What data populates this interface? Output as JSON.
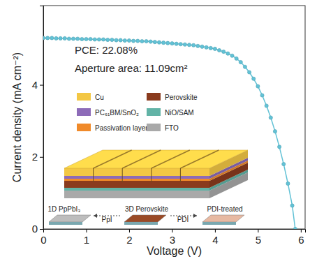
{
  "chart_data": {
    "type": "line",
    "x_label": "Voltage (V)",
    "y_label": "Current density (mA cm⁻²)",
    "xlim": [
      0,
      6.1
    ],
    "ylim": [
      0,
      6.2
    ],
    "xticks": [
      0,
      1,
      2,
      3,
      4,
      5,
      6
    ],
    "yticks": [
      0,
      2,
      4
    ],
    "grid": false,
    "x": [
      0,
      0.1,
      0.2,
      0.3,
      0.4,
      0.5,
      0.6,
      0.7,
      0.8,
      0.9,
      1.0,
      1.1,
      1.2,
      1.3,
      1.4,
      1.5,
      1.6,
      1.7,
      1.8,
      1.9,
      2.0,
      2.1,
      2.2,
      2.3,
      2.4,
      2.5,
      2.6,
      2.7,
      2.8,
      2.9,
      3.0,
      3.1,
      3.2,
      3.3,
      3.4,
      3.5,
      3.6,
      3.7,
      3.8,
      3.9,
      4.0,
      4.1,
      4.2,
      4.3,
      4.4,
      4.5,
      4.6,
      4.7,
      4.8,
      4.9,
      5.0,
      5.1,
      5.2,
      5.3,
      5.4,
      5.5,
      5.6,
      5.7,
      5.8,
      5.87
    ],
    "series": [
      {
        "color": "#62c2d6",
        "marker": "circle",
        "line_style": "solid",
        "values": [
          5.3,
          5.3,
          5.3,
          5.29,
          5.29,
          5.29,
          5.28,
          5.28,
          5.28,
          5.27,
          5.27,
          5.27,
          5.26,
          5.26,
          5.26,
          5.25,
          5.25,
          5.24,
          5.24,
          5.23,
          5.23,
          5.22,
          5.22,
          5.21,
          5.21,
          5.2,
          5.19,
          5.18,
          5.17,
          5.16,
          5.15,
          5.14,
          5.13,
          5.12,
          5.11,
          5.1,
          5.08,
          5.06,
          5.04,
          5.02,
          5.0,
          4.96,
          4.92,
          4.87,
          4.81,
          4.73,
          4.63,
          4.5,
          4.35,
          4.17,
          3.96,
          3.71,
          3.42,
          3.09,
          2.71,
          2.28,
          1.8,
          1.26,
          0.65,
          0.0
        ]
      }
    ],
    "annotations": [
      "PCE: 22.08%",
      "Aperture area: 11.09cm²"
    ],
    "inset": {
      "layers": [
        {
          "label": "Cu",
          "color": "#f3c744"
        },
        {
          "label": "PC₆₁BM/SnO₂",
          "color": "#8d6bb8"
        },
        {
          "label": "Passivation layer",
          "color": "#f08a2a"
        },
        {
          "label": "Perovskite",
          "color": "#8a3b1e"
        },
        {
          "label": "NiO/SAM",
          "color": "#62b3a6"
        },
        {
          "label": "FTO",
          "color": "#a9a9a9"
        }
      ],
      "steps": [
        "1D PpPbI₃",
        "PpI",
        "3D Perovskite",
        "PDI",
        "PDI-treated"
      ]
    }
  }
}
